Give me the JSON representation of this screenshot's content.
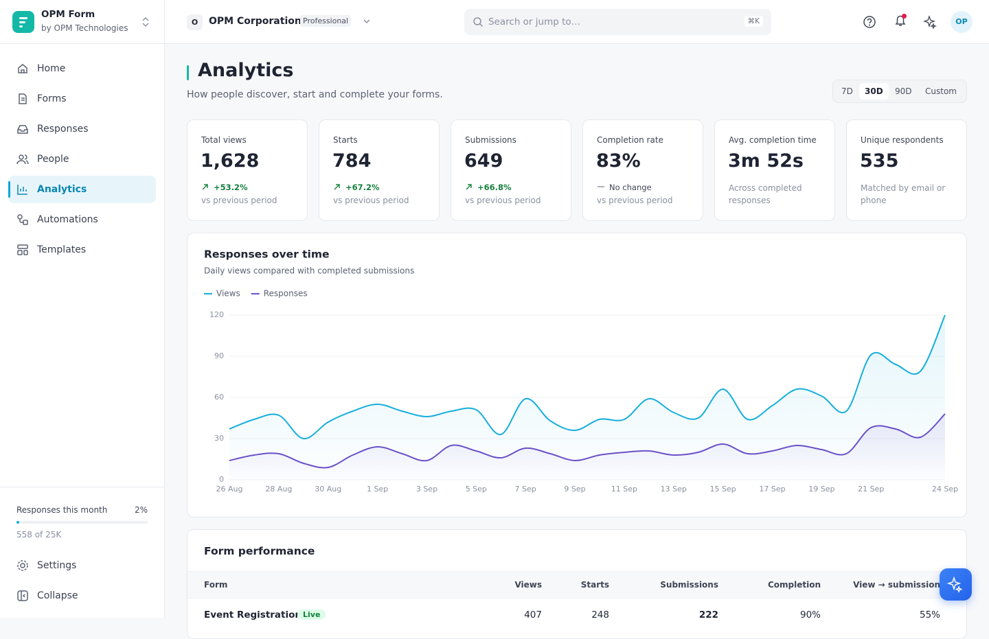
{
  "sidebar": {
    "brand": {
      "name": "OPM Form",
      "by": "by OPM Technologies"
    },
    "nav": [
      "Home",
      "Forms",
      "Responses",
      "People",
      "Analytics",
      "Automations",
      "Templates"
    ],
    "usage": {
      "label": "Responses this month",
      "percent": "2%",
      "detail": "558 of 25K"
    },
    "footer_nav": [
      "Settings",
      "Collapse"
    ]
  },
  "topbar": {
    "org_initial": "O",
    "org": "OPM Corporation",
    "plan": "Professional",
    "search": "Search or jump to…",
    "shortcut": "⌘K",
    "avatar": "OP"
  },
  "header": {
    "title": "Analytics",
    "subtitle": "How people discover, start and complete your forms.",
    "ranges": [
      "7D",
      "30D",
      "90D",
      "Custom"
    ]
  },
  "kpis": [
    {
      "label": "Total views",
      "value": "1,628",
      "change": "+53.2%",
      "note": "vs previous period"
    },
    {
      "label": "Starts",
      "value": "784",
      "change": "+67.2%",
      "note": "vs previous period"
    },
    {
      "label": "Submissions",
      "value": "649",
      "change": "+66.8%",
      "note": "vs previous period"
    },
    {
      "label": "Completion rate",
      "value": "83%",
      "change": "No change",
      "note": "vs previous period"
    },
    {
      "label": "Avg. completion time",
      "value": "3m 52s",
      "note": "Across completed responses"
    },
    {
      "label": "Unique respondents",
      "value": "535",
      "note": "Matched by email or phone"
    }
  ],
  "chart_data": {
    "type": "line",
    "title": "Responses over time",
    "subtitle": "Daily views compared with completed submissions",
    "categories": [
      "26 Aug",
      null,
      "28 Aug",
      null,
      "30 Aug",
      null,
      "1 Sep",
      null,
      "3 Sep",
      null,
      "5 Sep",
      null,
      "7 Sep",
      null,
      "9 Sep",
      null,
      "11 Sep",
      null,
      "13 Sep",
      null,
      "15 Sep",
      null,
      "17 Sep",
      null,
      "19 Sep",
      null,
      "21 Sep",
      null,
      null,
      "24 Sep"
    ],
    "series": [
      {
        "name": "Views",
        "color": "#16aedb",
        "values": [
          37,
          44,
          47,
          30,
          42,
          50,
          55,
          50,
          46,
          50,
          51,
          33,
          59,
          43,
          36,
          44,
          44,
          59,
          49,
          45,
          66,
          44,
          54,
          66,
          61,
          50,
          91,
          84,
          79,
          120
        ]
      },
      {
        "name": "Responses",
        "color": "#6a50c8",
        "values": [
          14,
          18,
          19,
          12,
          9,
          18,
          24,
          19,
          14,
          25,
          21,
          16,
          23,
          19,
          14,
          18,
          20,
          21,
          18,
          20,
          26,
          19,
          21,
          25,
          22,
          19,
          38,
          37,
          31,
          48
        ]
      }
    ],
    "ylim": [
      0,
      120
    ],
    "yticks": [
      0,
      30,
      60,
      90,
      120
    ],
    "grid": true
  },
  "table": {
    "title": "Form performance",
    "columns": [
      "Form",
      "Views",
      "Starts",
      "Submissions",
      "Completion",
      "View → submission"
    ],
    "rows": [
      {
        "form": "Event Registration",
        "status": "Live",
        "cells": [
          "407",
          "248",
          "222",
          "90%",
          "55%"
        ]
      }
    ]
  }
}
